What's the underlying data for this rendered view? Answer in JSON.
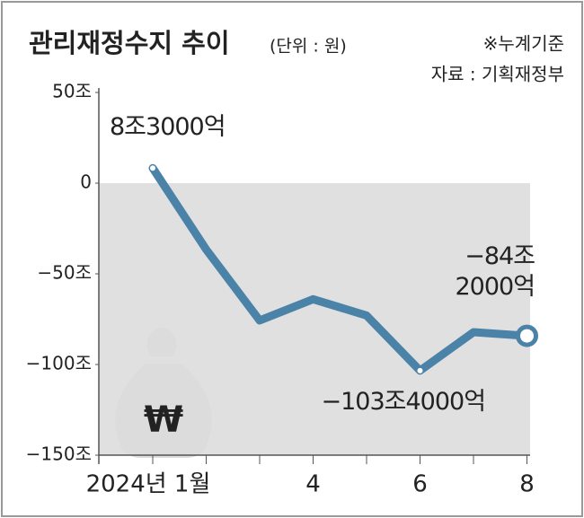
{
  "chart_data": {
    "type": "line",
    "title": "관리재정수지 추이",
    "subtitle": "(단위 : 원)",
    "notes": [
      "※누계기준",
      "자료 : 기획재정부"
    ],
    "categories": [
      "2024년 1월",
      null,
      null,
      "4",
      null,
      "6",
      null,
      "8"
    ],
    "values": [
      8.3,
      -36.6,
      -75.7,
      -64,
      -73,
      -103.4,
      -82.2,
      -84.2
    ],
    "value_labels": [
      "8조3000억",
      null,
      null,
      null,
      null,
      "−103조4000억",
      null,
      "−84조\n2000억"
    ],
    "color": "#4a82a8",
    "ylim": [
      -150,
      50
    ],
    "yticks": [
      {
        "value": 50,
        "label": "50조"
      },
      0,
      {
        "value": -50,
        "label": "−50조"
      },
      {
        "value": -100,
        "label": "−100조"
      },
      {
        "value": -150,
        "label": "−150조"
      }
    ],
    "grid": false
  }
}
